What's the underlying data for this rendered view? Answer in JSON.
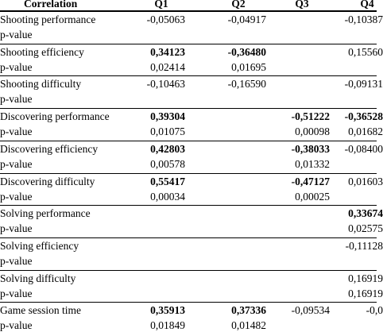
{
  "table": {
    "header": [
      "Correlation",
      "Q1",
      "Q2",
      "Q3",
      "Q4"
    ],
    "groups": [
      {
        "label": "Shooting performance",
        "values": [
          "-0,05063",
          "-0,04917",
          null,
          "-0,10387"
        ],
        "bold": [
          false,
          false,
          false,
          false
        ],
        "p_label": "p-value",
        "p_values": [
          null,
          null,
          null,
          null
        ]
      },
      {
        "label": "Shooting efficiency",
        "values": [
          "0,34123",
          "-0,36480",
          null,
          "0,15560"
        ],
        "bold": [
          true,
          true,
          false,
          false
        ],
        "p_label": "p-value",
        "p_values": [
          "0,02414",
          "0,01695",
          null,
          null
        ]
      },
      {
        "label": "Shooting difficulty",
        "values": [
          "-0,10463",
          "-0,16590",
          null,
          "-0,09131"
        ],
        "bold": [
          false,
          false,
          false,
          false
        ],
        "p_label": "p-value",
        "p_values": [
          null,
          null,
          null,
          null
        ]
      },
      {
        "label": "Discovering performance",
        "values": [
          "0,39304",
          null,
          "-0,51222",
          "-0,36528"
        ],
        "bold": [
          true,
          false,
          true,
          true
        ],
        "p_label": "p-value",
        "p_values": [
          "0,01075",
          null,
          "0,00098",
          "0,01682"
        ]
      },
      {
        "label": "Discovering efficiency",
        "values": [
          "0,42803",
          null,
          "-0,38033",
          "-0,08400"
        ],
        "bold": [
          true,
          false,
          true,
          false
        ],
        "p_label": "p-value",
        "p_values": [
          "0,00578",
          null,
          "0,01332",
          null
        ]
      },
      {
        "label": "Discovering difficulty",
        "values": [
          "0,55417",
          null,
          "-0,47127",
          "0,01603"
        ],
        "bold": [
          true,
          false,
          true,
          false
        ],
        "p_label": "p-value",
        "p_values": [
          "0,00034",
          null,
          "0,00025",
          null
        ]
      },
      {
        "label": "Solving performance",
        "values": [
          null,
          null,
          null,
          "0,33674"
        ],
        "bold": [
          false,
          false,
          false,
          true
        ],
        "p_label": "p-value",
        "p_values": [
          null,
          null,
          null,
          "0,02575"
        ]
      },
      {
        "label": "Solving efficiency",
        "values": [
          null,
          null,
          null,
          "-0,11128"
        ],
        "bold": [
          false,
          false,
          false,
          false
        ],
        "p_label": "p-value",
        "p_values": [
          null,
          null,
          null,
          null
        ]
      },
      {
        "label": "Solving difficulty",
        "values": [
          null,
          null,
          null,
          "0,16919"
        ],
        "bold": [
          false,
          false,
          false,
          false
        ],
        "p_label": "p-value",
        "p_values": [
          null,
          null,
          null,
          "0,16919"
        ]
      },
      {
        "label": "Game session time",
        "values": [
          "0,35913",
          "0,37336",
          "-0,09534",
          "-0,0"
        ],
        "bold": [
          true,
          true,
          false,
          false
        ],
        "p_label": "p-value",
        "p_values": [
          "0,01849",
          "0,01482",
          null,
          null
        ]
      }
    ]
  }
}
